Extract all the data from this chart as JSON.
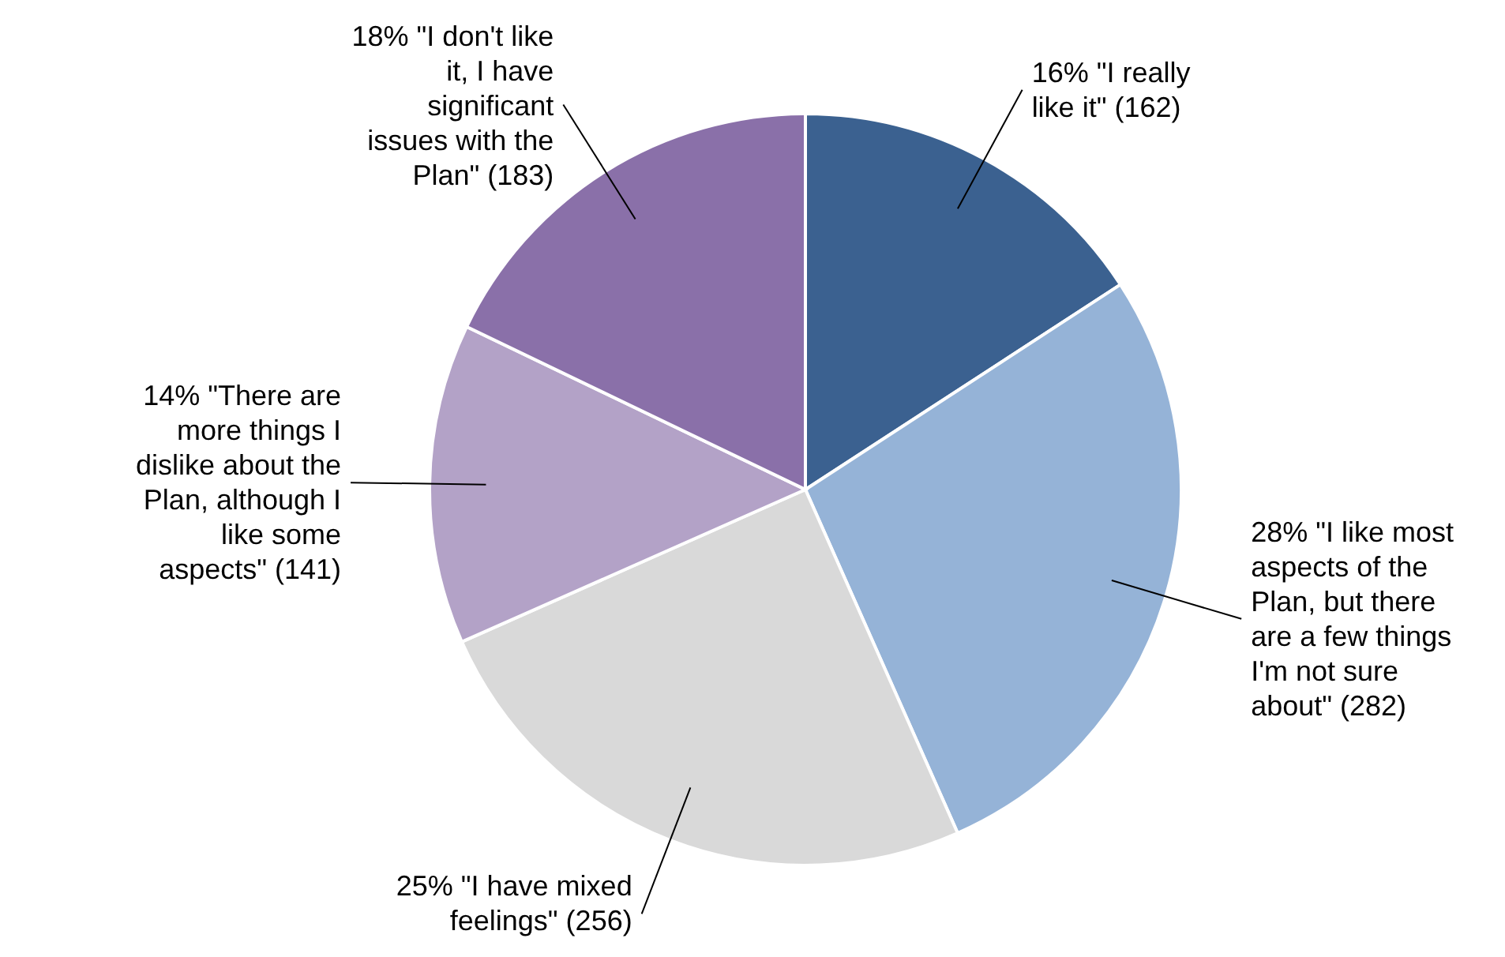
{
  "chart_data": {
    "type": "pie",
    "categories": [
      null,
      null,
      null,
      null,
      null
    ],
    "values": [
      15.82,
      27.54,
      25.0,
      13.77,
      17.87
    ],
    "value_labels": [
      "16% \"I really like it\" (162)",
      "28% \"I like most aspects of the Plan, but there are a few things I'm not sure about\" (282)",
      "25% \"I have mixed feelings\" (256)",
      "14% \"There are more things I dislike about the Plan, although I like some aspects\" (141)",
      "18% \"I don't like it, I have significant issues with the Plan\" (183)"
    ],
    "colors": [
      "#3b6190",
      "#95b3d7",
      "#d9d9d9",
      "#b3a2c7",
      "#8a70a9"
    ],
    "legend": false
  }
}
